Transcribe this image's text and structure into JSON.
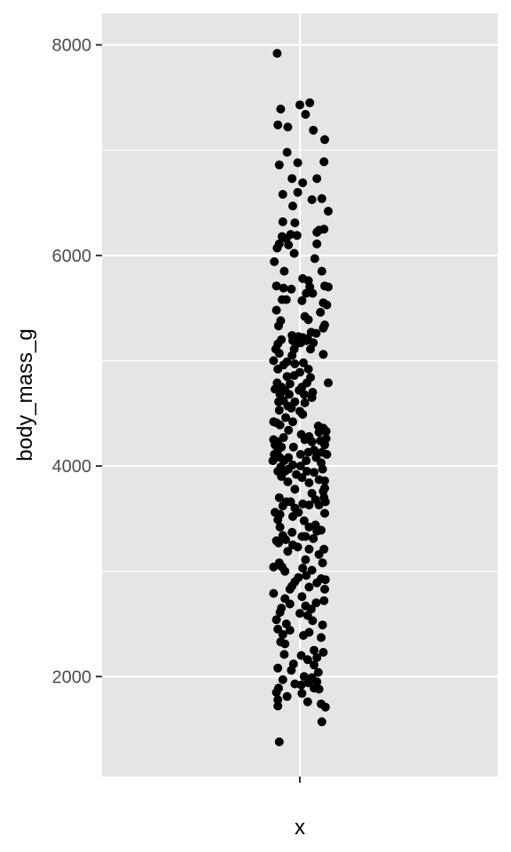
{
  "chart_data": {
    "type": "scatter",
    "title": "",
    "xlabel": "x",
    "ylabel": "body_mass_g",
    "x_categories": [
      ""
    ],
    "ylim": [
      1050,
      8300
    ],
    "y_ticks": [
      2000,
      4000,
      6000,
      8000
    ],
    "y_tick_labels": [
      "2000",
      "4000",
      "6000",
      "8000"
    ],
    "grid": true,
    "legend": "none",
    "colors": {
      "panel": "#e5e5e5",
      "grid": "#ffffff",
      "point": "#000000",
      "tick_text": "#4d4d4d",
      "tick_mark": "#333333"
    },
    "jitter_range": [
      -0.35,
      0.35
    ],
    "points": [
      {
        "x": -0.32,
        "y": 7920
      },
      {
        "x": -0.27,
        "y": 7390
      },
      {
        "x": -0.31,
        "y": 7240
      },
      {
        "x": -0.17,
        "y": 7220
      },
      {
        "x": 0.0,
        "y": 7430
      },
      {
        "x": 0.14,
        "y": 7450
      },
      {
        "x": 0.08,
        "y": 7340
      },
      {
        "x": 0.19,
        "y": 7190
      },
      {
        "x": 0.35,
        "y": 7100
      },
      {
        "x": -0.18,
        "y": 6980
      },
      {
        "x": -0.29,
        "y": 6860
      },
      {
        "x": -0.03,
        "y": 6880
      },
      {
        "x": 0.34,
        "y": 6890
      },
      {
        "x": -0.11,
        "y": 6730
      },
      {
        "x": 0.04,
        "y": 6690
      },
      {
        "x": 0.24,
        "y": 6730
      },
      {
        "x": -0.24,
        "y": 6580
      },
      {
        "x": -0.03,
        "y": 6600
      },
      {
        "x": 0.17,
        "y": 6530
      },
      {
        "x": 0.31,
        "y": 6540
      },
      {
        "x": -0.1,
        "y": 6470
      },
      {
        "x": 0.4,
        "y": 6420
      },
      {
        "x": -0.24,
        "y": 6320
      },
      {
        "x": -0.07,
        "y": 6310
      },
      {
        "x": 0.27,
        "y": 6240
      },
      {
        "x": -0.13,
        "y": 6200
      },
      {
        "x": -0.04,
        "y": 6190
      },
      {
        "x": 0.24,
        "y": 6220
      },
      {
        "x": 0.34,
        "y": 6250
      },
      {
        "x": -0.25,
        "y": 6180
      },
      {
        "x": -0.19,
        "y": 6160
      },
      {
        "x": -0.29,
        "y": 6110
      },
      {
        "x": -0.32,
        "y": 6070
      },
      {
        "x": -0.16,
        "y": 6100
      },
      {
        "x": 0.24,
        "y": 6110
      },
      {
        "x": -0.08,
        "y": 6020
      },
      {
        "x": -0.36,
        "y": 5940
      },
      {
        "x": 0.21,
        "y": 5970
      },
      {
        "x": -0.22,
        "y": 5850
      },
      {
        "x": 0.31,
        "y": 5850
      },
      {
        "x": 0.04,
        "y": 5780
      },
      {
        "x": 0.12,
        "y": 5760
      },
      {
        "x": -0.33,
        "y": 5710
      },
      {
        "x": -0.23,
        "y": 5690
      },
      {
        "x": -0.12,
        "y": 5680
      },
      {
        "x": 0.14,
        "y": 5700
      },
      {
        "x": 0.35,
        "y": 5710
      },
      {
        "x": 0.4,
        "y": 5700
      },
      {
        "x": 0.09,
        "y": 5640
      },
      {
        "x": 0.18,
        "y": 5640
      },
      {
        "x": -0.19,
        "y": 5580
      },
      {
        "x": -0.25,
        "y": 5580
      },
      {
        "x": 0.03,
        "y": 5570
      },
      {
        "x": 0.33,
        "y": 5550
      },
      {
        "x": 0.38,
        "y": 5530
      },
      {
        "x": -0.33,
        "y": 5480
      },
      {
        "x": 0.29,
        "y": 5460
      },
      {
        "x": 0.07,
        "y": 5420
      },
      {
        "x": 0.12,
        "y": 5390
      },
      {
        "x": -0.27,
        "y": 5380
      },
      {
        "x": -0.3,
        "y": 5330
      },
      {
        "x": 0.35,
        "y": 5340
      },
      {
        "x": 0.33,
        "y": 5310
      },
      {
        "x": 0.16,
        "y": 5270
      },
      {
        "x": 0.23,
        "y": 5260
      },
      {
        "x": -0.11,
        "y": 5240
      },
      {
        "x": -0.02,
        "y": 5230
      },
      {
        "x": 0.04,
        "y": 5220
      },
      {
        "x": 0.11,
        "y": 5210
      },
      {
        "x": -0.26,
        "y": 5200
      },
      {
        "x": -0.1,
        "y": 5190
      },
      {
        "x": 0.09,
        "y": 5190
      },
      {
        "x": -0.31,
        "y": 5160
      },
      {
        "x": -0.05,
        "y": 5160
      },
      {
        "x": 0.01,
        "y": 5170
      },
      {
        "x": 0.19,
        "y": 5170
      },
      {
        "x": -0.34,
        "y": 5110
      },
      {
        "x": -0.08,
        "y": 5110
      },
      {
        "x": 0.15,
        "y": 5110
      },
      {
        "x": -0.29,
        "y": 5070
      },
      {
        "x": 0.33,
        "y": 5060
      },
      {
        "x": -0.11,
        "y": 5050
      },
      {
        "x": -0.37,
        "y": 5000
      },
      {
        "x": -0.18,
        "y": 4990
      },
      {
        "x": -0.23,
        "y": 4960
      },
      {
        "x": -0.07,
        "y": 4970
      },
      {
        "x": 0.05,
        "y": 4980
      },
      {
        "x": 0.12,
        "y": 4920
      },
      {
        "x": -0.31,
        "y": 4920
      },
      {
        "x": 0.0,
        "y": 4890
      },
      {
        "x": -0.18,
        "y": 4850
      },
      {
        "x": -0.08,
        "y": 4860
      },
      {
        "x": 0.15,
        "y": 4840
      },
      {
        "x": -0.32,
        "y": 4790
      },
      {
        "x": -0.14,
        "y": 4780
      },
      {
        "x": 0.1,
        "y": 4790
      },
      {
        "x": 0.4,
        "y": 4790
      },
      {
        "x": -0.26,
        "y": 4750
      },
      {
        "x": 0.03,
        "y": 4750
      },
      {
        "x": -0.35,
        "y": 4730
      },
      {
        "x": -0.21,
        "y": 4720
      },
      {
        "x": -0.01,
        "y": 4720
      },
      {
        "x": 0.18,
        "y": 4700
      },
      {
        "x": -0.28,
        "y": 4680
      },
      {
        "x": -0.15,
        "y": 4680
      },
      {
        "x": 0.06,
        "y": 4680
      },
      {
        "x": 0.17,
        "y": 4650
      },
      {
        "x": -0.23,
        "y": 4620
      },
      {
        "x": -0.3,
        "y": 4610
      },
      {
        "x": -0.07,
        "y": 4610
      },
      {
        "x": 0.07,
        "y": 4600
      },
      {
        "x": -0.17,
        "y": 4570
      },
      {
        "x": -0.12,
        "y": 4550
      },
      {
        "x": -0.29,
        "y": 4530
      },
      {
        "x": 0.0,
        "y": 4520
      },
      {
        "x": 0.04,
        "y": 4490
      },
      {
        "x": -0.2,
        "y": 4460
      },
      {
        "x": -0.37,
        "y": 4420
      },
      {
        "x": -0.33,
        "y": 4410
      },
      {
        "x": -0.1,
        "y": 4420
      },
      {
        "x": -0.28,
        "y": 4390
      },
      {
        "x": 0.26,
        "y": 4380
      },
      {
        "x": 0.33,
        "y": 4360
      },
      {
        "x": 0.37,
        "y": 4330
      },
      {
        "x": -0.16,
        "y": 4340
      },
      {
        "x": 0.27,
        "y": 4320
      },
      {
        "x": 0.02,
        "y": 4300
      },
      {
        "x": 0.13,
        "y": 4280
      },
      {
        "x": -0.23,
        "y": 4270
      },
      {
        "x": 0.37,
        "y": 4260
      },
      {
        "x": -0.37,
        "y": 4250
      },
      {
        "x": 0.07,
        "y": 4250
      },
      {
        "x": 0.29,
        "y": 4240
      },
      {
        "x": -0.31,
        "y": 4230
      },
      {
        "x": 0.17,
        "y": 4230
      },
      {
        "x": -0.35,
        "y": 4200
      },
      {
        "x": -0.26,
        "y": 4180
      },
      {
        "x": -0.09,
        "y": 4180
      },
      {
        "x": 0.35,
        "y": 4200
      },
      {
        "x": -0.31,
        "y": 4150
      },
      {
        "x": 0.2,
        "y": 4150
      },
      {
        "x": 0.12,
        "y": 4130
      },
      {
        "x": 0.31,
        "y": 4130
      },
      {
        "x": -0.36,
        "y": 4110
      },
      {
        "x": 0.01,
        "y": 4110
      },
      {
        "x": 0.38,
        "y": 4110
      },
      {
        "x": -0.28,
        "y": 4080
      },
      {
        "x": -0.16,
        "y": 4080
      },
      {
        "x": 0.23,
        "y": 4080
      },
      {
        "x": -0.38,
        "y": 4050
      },
      {
        "x": -0.22,
        "y": 4050
      },
      {
        "x": 0.09,
        "y": 4050
      },
      {
        "x": 0.3,
        "y": 4030
      },
      {
        "x": -0.1,
        "y": 4010
      },
      {
        "x": 0.01,
        "y": 4000
      },
      {
        "x": -0.27,
        "y": 3990
      },
      {
        "x": -0.16,
        "y": 3970
      },
      {
        "x": 0.32,
        "y": 3970
      },
      {
        "x": -0.31,
        "y": 3950
      },
      {
        "x": -0.21,
        "y": 3950
      },
      {
        "x": 0.1,
        "y": 3950
      },
      {
        "x": 0.2,
        "y": 3940
      },
      {
        "x": -0.05,
        "y": 3920
      },
      {
        "x": -0.26,
        "y": 3900
      },
      {
        "x": 0.03,
        "y": 3890
      },
      {
        "x": 0.27,
        "y": 3870
      },
      {
        "x": 0.35,
        "y": 3860
      },
      {
        "x": -0.17,
        "y": 3850
      },
      {
        "x": 0.13,
        "y": 3840
      },
      {
        "x": 0.35,
        "y": 3790
      },
      {
        "x": -0.07,
        "y": 3780
      },
      {
        "x": 0.33,
        "y": 3760
      },
      {
        "x": 0.17,
        "y": 3740
      },
      {
        "x": -0.29,
        "y": 3700
      },
      {
        "x": 0.34,
        "y": 3700
      },
      {
        "x": 0.22,
        "y": 3680
      },
      {
        "x": -0.19,
        "y": 3660
      },
      {
        "x": -0.13,
        "y": 3660
      },
      {
        "x": 0.36,
        "y": 3660
      },
      {
        "x": 0.04,
        "y": 3640
      },
      {
        "x": -0.24,
        "y": 3620
      },
      {
        "x": 0.13,
        "y": 3630
      },
      {
        "x": 0.27,
        "y": 3630
      },
      {
        "x": -0.07,
        "y": 3600
      },
      {
        "x": -0.35,
        "y": 3560
      },
      {
        "x": -0.02,
        "y": 3560
      },
      {
        "x": 0.35,
        "y": 3550
      },
      {
        "x": -0.28,
        "y": 3540
      },
      {
        "x": -0.1,
        "y": 3520
      },
      {
        "x": 0.06,
        "y": 3480
      },
      {
        "x": -0.31,
        "y": 3490
      },
      {
        "x": 0.22,
        "y": 3440
      },
      {
        "x": -0.28,
        "y": 3420
      },
      {
        "x": 0.13,
        "y": 3420
      },
      {
        "x": 0.3,
        "y": 3390
      },
      {
        "x": -0.11,
        "y": 3370
      },
      {
        "x": 0.24,
        "y": 3380
      },
      {
        "x": -0.24,
        "y": 3340
      },
      {
        "x": 0.03,
        "y": 3330
      },
      {
        "x": 0.08,
        "y": 3330
      },
      {
        "x": -0.2,
        "y": 3300
      },
      {
        "x": 0.19,
        "y": 3310
      },
      {
        "x": -0.33,
        "y": 3290
      },
      {
        "x": -0.3,
        "y": 3270
      },
      {
        "x": -0.1,
        "y": 3250
      },
      {
        "x": -0.03,
        "y": 3230
      },
      {
        "x": 0.13,
        "y": 3210
      },
      {
        "x": 0.34,
        "y": 3210
      },
      {
        "x": -0.17,
        "y": 3190
      },
      {
        "x": 0.27,
        "y": 3160
      },
      {
        "x": 0.08,
        "y": 3110
      },
      {
        "x": -0.29,
        "y": 3080
      },
      {
        "x": 0.32,
        "y": 3080
      },
      {
        "x": -0.37,
        "y": 3040
      },
      {
        "x": -0.25,
        "y": 3040
      },
      {
        "x": 0.04,
        "y": 3030
      },
      {
        "x": -0.21,
        "y": 3000
      },
      {
        "x": 0.17,
        "y": 3010
      },
      {
        "x": 0.09,
        "y": 2960
      },
      {
        "x": -0.02,
        "y": 2940
      },
      {
        "x": 0.3,
        "y": 2930
      },
      {
        "x": 0.36,
        "y": 2920
      },
      {
        "x": -0.07,
        "y": 2900
      },
      {
        "x": 0.24,
        "y": 2890
      },
      {
        "x": -0.11,
        "y": 2860
      },
      {
        "x": 0.13,
        "y": 2850
      },
      {
        "x": -0.14,
        "y": 2830
      },
      {
        "x": 0.35,
        "y": 2830
      },
      {
        "x": -0.37,
        "y": 2790
      },
      {
        "x": 0.03,
        "y": 2760
      },
      {
        "x": -0.21,
        "y": 2740
      },
      {
        "x": 0.34,
        "y": 2720
      },
      {
        "x": 0.23,
        "y": 2700
      },
      {
        "x": -0.14,
        "y": 2690
      },
      {
        "x": 0.08,
        "y": 2670
      },
      {
        "x": -0.26,
        "y": 2650
      },
      {
        "x": 0.16,
        "y": 2640
      },
      {
        "x": -0.28,
        "y": 2610
      },
      {
        "x": 0.0,
        "y": 2600
      },
      {
        "x": 0.11,
        "y": 2580
      },
      {
        "x": -0.33,
        "y": 2540
      },
      {
        "x": 0.18,
        "y": 2530
      },
      {
        "x": -0.19,
        "y": 2500
      },
      {
        "x": 0.32,
        "y": 2490
      },
      {
        "x": -0.31,
        "y": 2450
      },
      {
        "x": -0.14,
        "y": 2440
      },
      {
        "x": 0.13,
        "y": 2420
      },
      {
        "x": -0.24,
        "y": 2400
      },
      {
        "x": 0.05,
        "y": 2390
      },
      {
        "x": 0.3,
        "y": 2370
      },
      {
        "x": -0.27,
        "y": 2330
      },
      {
        "x": -0.21,
        "y": 2310
      },
      {
        "x": 0.2,
        "y": 2250
      },
      {
        "x": 0.33,
        "y": 2230
      },
      {
        "x": -0.22,
        "y": 2210
      },
      {
        "x": 0.02,
        "y": 2200
      },
      {
        "x": 0.24,
        "y": 2180
      },
      {
        "x": 0.11,
        "y": 2160
      },
      {
        "x": -0.09,
        "y": 2120
      },
      {
        "x": 0.2,
        "y": 2110
      },
      {
        "x": -0.31,
        "y": 2080
      },
      {
        "x": -0.12,
        "y": 2060
      },
      {
        "x": 0.26,
        "y": 2040
      },
      {
        "x": 0.06,
        "y": 2000
      },
      {
        "x": 0.17,
        "y": 1990
      },
      {
        "x": -0.24,
        "y": 1970
      },
      {
        "x": 0.12,
        "y": 1940
      },
      {
        "x": 0.24,
        "y": 1950
      },
      {
        "x": -0.07,
        "y": 1930
      },
      {
        "x": 0.02,
        "y": 1920
      },
      {
        "x": -0.3,
        "y": 1890
      },
      {
        "x": 0.2,
        "y": 1890
      },
      {
        "x": 0.27,
        "y": 1880
      },
      {
        "x": -0.33,
        "y": 1850
      },
      {
        "x": 0.03,
        "y": 1840
      },
      {
        "x": -0.18,
        "y": 1810
      },
      {
        "x": -0.31,
        "y": 1780
      },
      {
        "x": 0.11,
        "y": 1760
      },
      {
        "x": 0.3,
        "y": 1740
      },
      {
        "x": -0.31,
        "y": 1720
      },
      {
        "x": 0.36,
        "y": 1710
      },
      {
        "x": 0.31,
        "y": 1570
      },
      {
        "x": -0.29,
        "y": 1380
      }
    ]
  }
}
